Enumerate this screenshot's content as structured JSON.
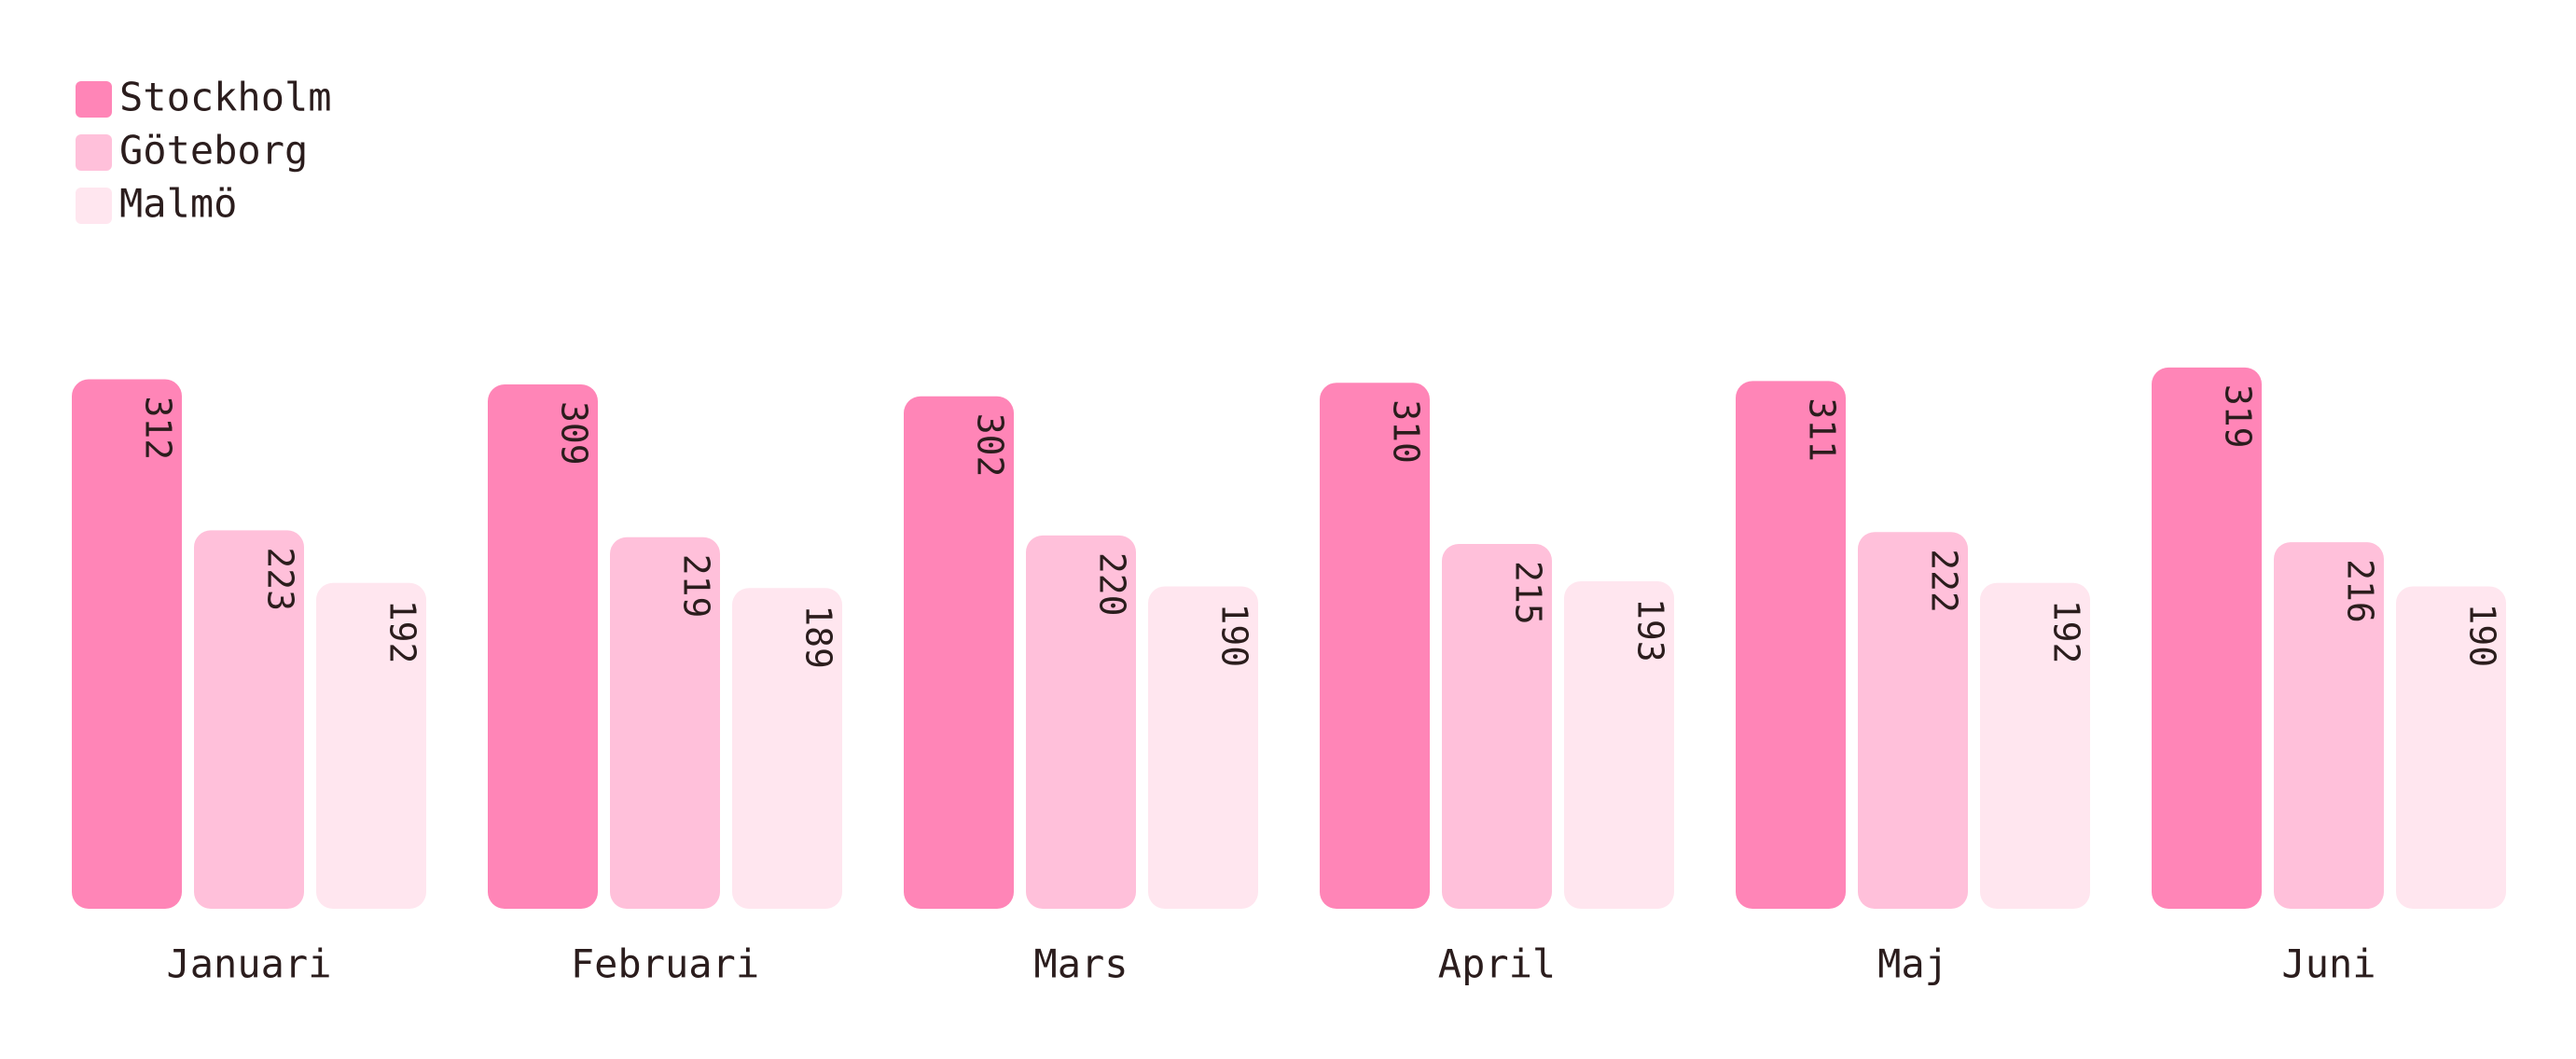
{
  "chart_data": {
    "type": "bar",
    "categories": [
      "Januari",
      "Februari",
      "Mars",
      "April",
      "Maj",
      "Juni"
    ],
    "series": [
      {
        "name": "Stockholm",
        "color": "#ff85b7",
        "values": [
          312,
          309,
          302,
          310,
          311,
          319
        ]
      },
      {
        "name": "Göteborg",
        "color": "#ffc0da",
        "values": [
          223,
          219,
          220,
          215,
          222,
          216
        ]
      },
      {
        "name": "Malmö",
        "color": "#ffe6ef",
        "values": [
          192,
          189,
          190,
          193,
          192,
          190
        ]
      }
    ],
    "ylim": [
      0,
      320
    ],
    "legend": "top-left"
  }
}
